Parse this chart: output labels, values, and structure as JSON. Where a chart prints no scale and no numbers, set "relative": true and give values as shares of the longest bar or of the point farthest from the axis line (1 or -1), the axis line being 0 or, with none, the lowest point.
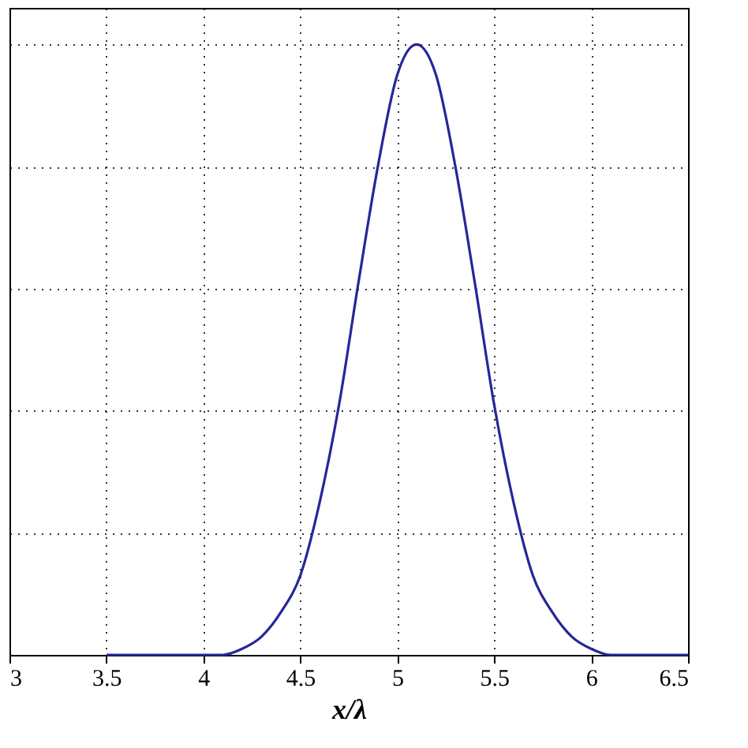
{
  "chart_data": {
    "type": "line",
    "xlabel": "x/λ",
    "relative": true,
    "x": [
      3.5,
      3.6,
      3.7,
      3.8,
      3.9,
      4.0,
      4.1,
      4.2,
      4.3,
      4.4,
      4.5,
      4.6,
      4.7,
      4.8,
      4.9,
      5.0,
      5.1,
      5.2,
      5.3,
      5.4,
      5.5,
      5.6,
      5.7,
      5.8,
      5.9,
      6.0,
      6.1,
      6.2,
      6.3,
      6.4,
      6.5
    ],
    "series": [
      {
        "color": "#26269a",
        "values": [
          0,
          0,
          0,
          0,
          0,
          0,
          0,
          0.01,
          0.03,
          0.07,
          0.13,
          0.25,
          0.41,
          0.61,
          0.8,
          0.95,
          1,
          0.95,
          0.8,
          0.61,
          0.41,
          0.25,
          0.13,
          0.07,
          0.03,
          0.01,
          0,
          0,
          0,
          0,
          0
        ]
      }
    ],
    "xlim": [
      3,
      6.5
    ],
    "xticks": [
      3,
      3.5,
      4,
      4.5,
      5,
      5.5,
      6,
      6.5
    ],
    "grid": true,
    "line_style": "solid",
    "marker": "none"
  }
}
